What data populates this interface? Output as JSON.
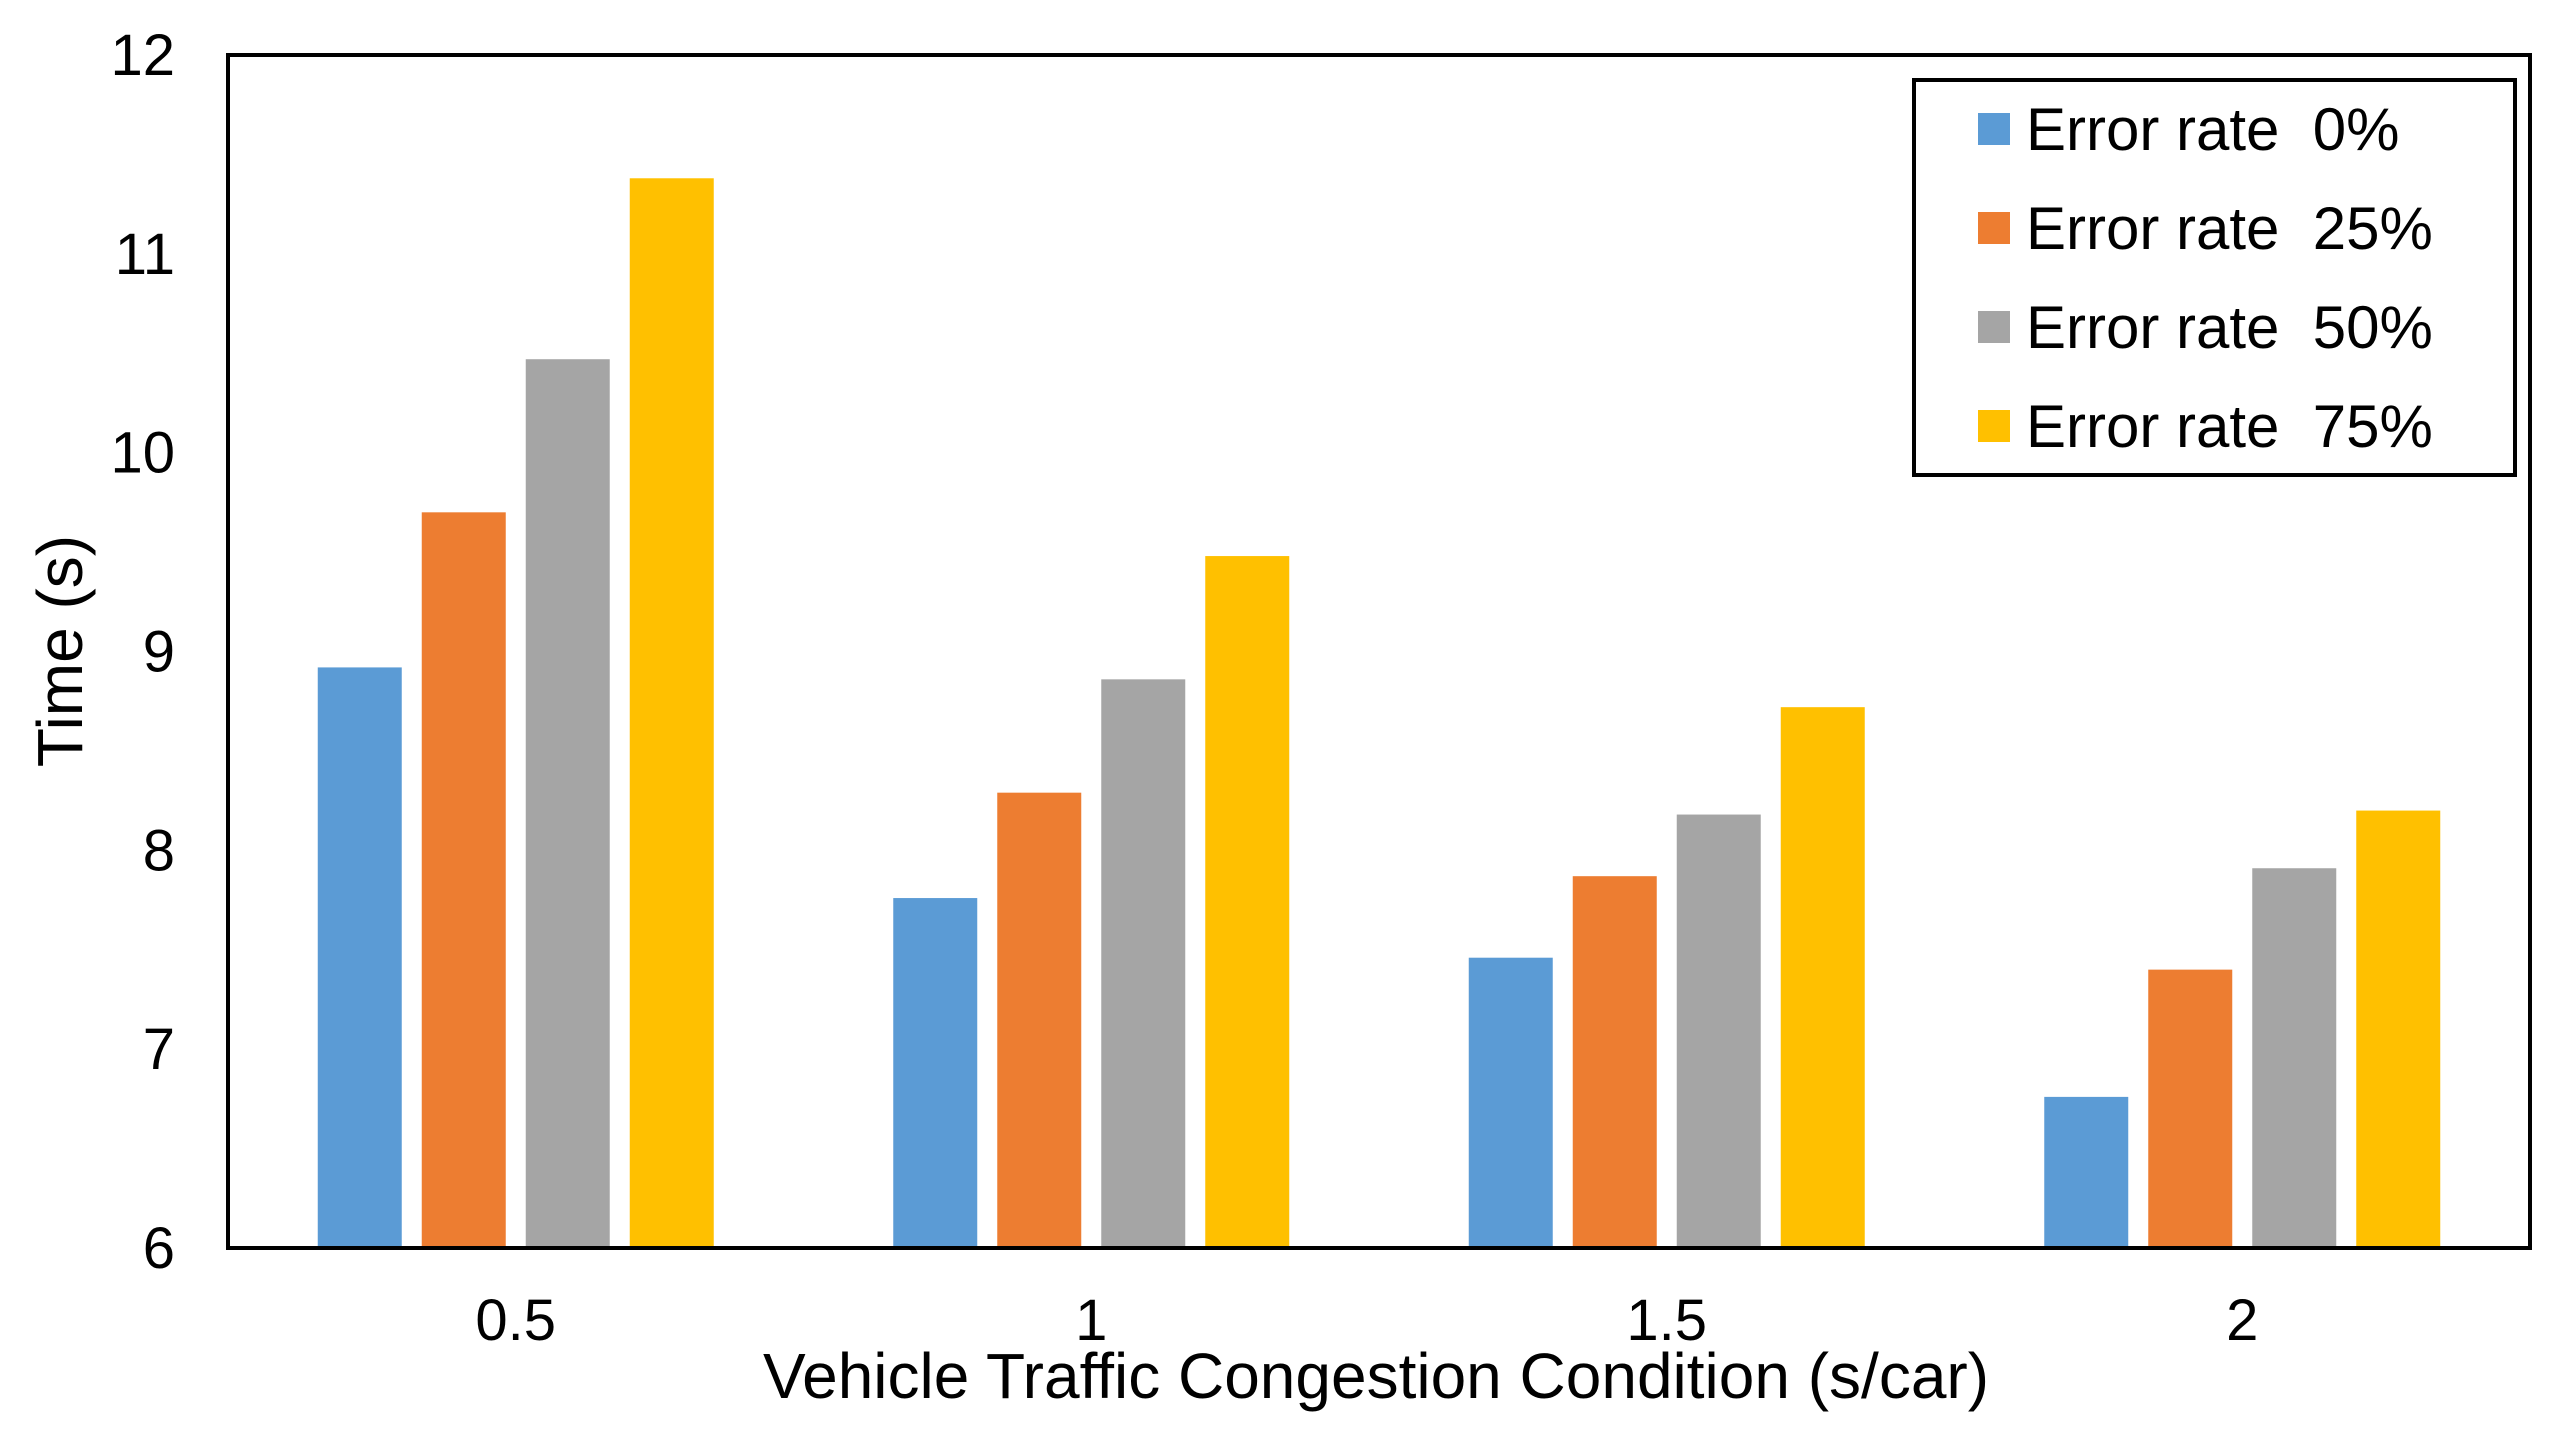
{
  "chart_data": {
    "type": "bar",
    "title": "",
    "xlabel": "Vehicle Traffic Congestion Condition (s/car)",
    "ylabel": "Time (s)",
    "categories": [
      "0.5",
      "1",
      "1.5",
      "2"
    ],
    "ylim": [
      6,
      12
    ],
    "yticks": [
      "6",
      "7",
      "8",
      "9",
      "10",
      "11",
      "12"
    ],
    "legend_position": "top-right",
    "grid": false,
    "series": [
      {
        "name": "Error rate  0%",
        "color": "#5B9BD5",
        "values": [
          8.92,
          7.76,
          7.46,
          6.76
        ]
      },
      {
        "name": "Error rate  25%",
        "color": "#ED7D31",
        "values": [
          9.7,
          8.29,
          7.87,
          7.4
        ]
      },
      {
        "name": "Error rate  50%",
        "color": "#A5A5A5",
        "values": [
          10.47,
          8.86,
          8.18,
          7.91
        ]
      },
      {
        "name": "Error rate  75%",
        "color": "#FFC000",
        "values": [
          11.38,
          9.48,
          8.72,
          8.2
        ]
      }
    ]
  }
}
